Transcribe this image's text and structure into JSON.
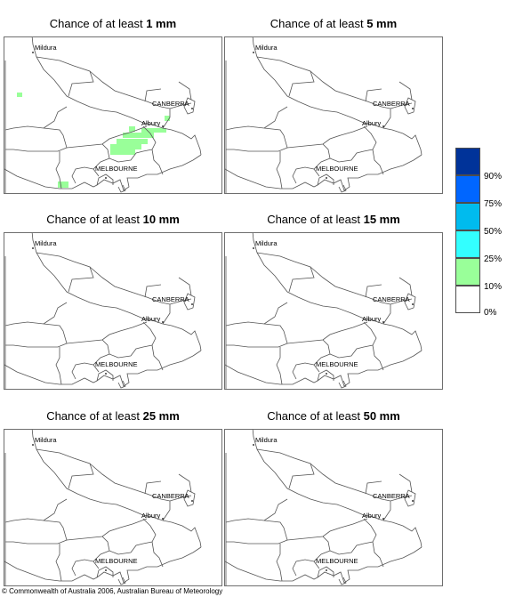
{
  "panels": [
    {
      "title_prefix": "Chance of at least",
      "amount": "1 mm",
      "shaded": true
    },
    {
      "title_prefix": "Chance of at least",
      "amount": "5 mm",
      "shaded": false
    },
    {
      "title_prefix": "Chance of at least",
      "amount": "10 mm",
      "shaded": false
    },
    {
      "title_prefix": "Chance of at least",
      "amount": "15 mm",
      "shaded": false
    },
    {
      "title_prefix": "Chance of at least",
      "amount": "25 mm",
      "shaded": false
    },
    {
      "title_prefix": "Chance of at least",
      "amount": "50 mm",
      "shaded": false
    }
  ],
  "map_labels": {
    "mildura": "Mildura",
    "canberra": "CANBERRA",
    "albury": "Albury",
    "melbourne": "MELBOURNE"
  },
  "legend": {
    "colors": [
      "#003399",
      "#0066ff",
      "#00bbee",
      "#33ffff",
      "#99ff99",
      "#ffffff"
    ],
    "ticks": [
      "90%",
      "75%",
      "50%",
      "25%",
      "10%",
      "0%"
    ],
    "shade_color": "#99ff99"
  },
  "copyright": "© Commonwealth of Australia 2006, Australian Bureau of Meteorology"
}
